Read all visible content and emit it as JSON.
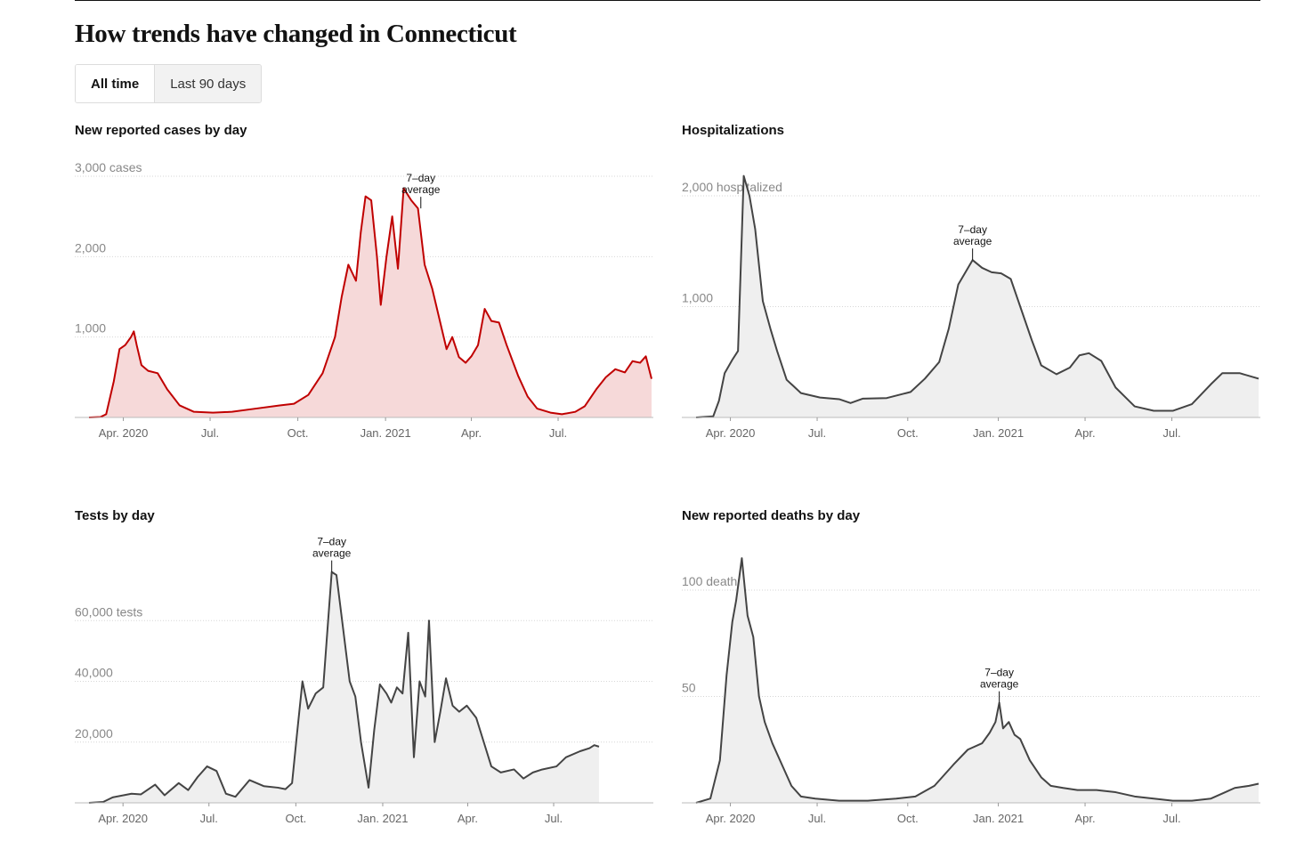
{
  "page": {
    "title": "How trends have changed in Connecticut"
  },
  "toggle": {
    "all_time": "All time",
    "last_90": "Last 90 days"
  },
  "colors": {
    "cases_line": "#c00000",
    "cases_fill": "#f6d9d9",
    "gray_line": "#444444",
    "gray_fill": "#efefef"
  },
  "chart_data": [
    {
      "id": "cases",
      "type": "area",
      "title": "New reported cases by day",
      "y_unit_label": "3,000 cases",
      "ylim": [
        0,
        3000
      ],
      "yticks": [
        {
          "v": 1000,
          "label": "1,000"
        },
        {
          "v": 2000,
          "label": "2,000"
        },
        {
          "v": 3000,
          "label": "3,000 cases"
        }
      ],
      "annotation": "7–day average",
      "annot_at": 348,
      "color": "cases",
      "xlim": [
        0,
        590
      ],
      "xticks": [
        {
          "v": 36,
          "label": "Apr. 2020"
        },
        {
          "v": 127,
          "label": "Jul."
        },
        {
          "v": 219,
          "label": "Oct."
        },
        {
          "v": 311,
          "label": "Jan. 2021"
        },
        {
          "v": 401,
          "label": "Apr."
        },
        {
          "v": 492,
          "label": "Jul."
        }
      ],
      "points": [
        [
          0,
          0
        ],
        [
          12,
          5
        ],
        [
          18,
          40
        ],
        [
          26,
          450
        ],
        [
          32,
          850
        ],
        [
          38,
          900
        ],
        [
          44,
          1000
        ],
        [
          47,
          1070
        ],
        [
          50,
          900
        ],
        [
          55,
          650
        ],
        [
          62,
          580
        ],
        [
          72,
          550
        ],
        [
          82,
          350
        ],
        [
          95,
          150
        ],
        [
          110,
          70
        ],
        [
          130,
          60
        ],
        [
          150,
          70
        ],
        [
          175,
          110
        ],
        [
          200,
          150
        ],
        [
          215,
          170
        ],
        [
          230,
          280
        ],
        [
          245,
          550
        ],
        [
          258,
          1000
        ],
        [
          265,
          1500
        ],
        [
          272,
          1900
        ],
        [
          280,
          1700
        ],
        [
          285,
          2300
        ],
        [
          290,
          2750
        ],
        [
          296,
          2700
        ],
        [
          302,
          2000
        ],
        [
          306,
          1400
        ],
        [
          312,
          2000
        ],
        [
          318,
          2500
        ],
        [
          324,
          1850
        ],
        [
          330,
          2850
        ],
        [
          338,
          2700
        ],
        [
          345,
          2600
        ],
        [
          352,
          1900
        ],
        [
          360,
          1600
        ],
        [
          368,
          1200
        ],
        [
          375,
          850
        ],
        [
          381,
          1000
        ],
        [
          388,
          750
        ],
        [
          395,
          680
        ],
        [
          401,
          760
        ],
        [
          408,
          900
        ],
        [
          415,
          1350
        ],
        [
          422,
          1200
        ],
        [
          430,
          1180
        ],
        [
          438,
          900
        ],
        [
          450,
          520
        ],
        [
          460,
          260
        ],
        [
          470,
          110
        ],
        [
          484,
          60
        ],
        [
          496,
          40
        ],
        [
          510,
          70
        ],
        [
          520,
          140
        ],
        [
          532,
          350
        ],
        [
          542,
          500
        ],
        [
          552,
          600
        ],
        [
          562,
          560
        ],
        [
          570,
          700
        ],
        [
          578,
          680
        ],
        [
          584,
          760
        ],
        [
          590,
          480
        ]
      ]
    },
    {
      "id": "hosp",
      "type": "area",
      "title": "Hospitalizations",
      "y_unit_label": "2,000 hospitalized",
      "ylim": [
        0,
        2000
      ],
      "yticks": [
        {
          "v": 1000,
          "label": "1,000"
        },
        {
          "v": 2000,
          "label": "2,000 hospitalized"
        }
      ],
      "annotation": "7–day average",
      "annot_at": 290,
      "color": "gray",
      "xlim": [
        0,
        590
      ],
      "xticks": [
        {
          "v": 36,
          "label": "Apr. 2020"
        },
        {
          "v": 127,
          "label": "Jul."
        },
        {
          "v": 222,
          "label": "Oct."
        },
        {
          "v": 317,
          "label": "Jan. 2021"
        },
        {
          "v": 408,
          "label": "Apr."
        },
        {
          "v": 499,
          "label": "Jul."
        }
      ],
      "points": [
        [
          0,
          0
        ],
        [
          18,
          10
        ],
        [
          24,
          150
        ],
        [
          30,
          400
        ],
        [
          38,
          520
        ],
        [
          44,
          600
        ],
        [
          50,
          2180
        ],
        [
          56,
          2000
        ],
        [
          62,
          1700
        ],
        [
          70,
          1050
        ],
        [
          78,
          800
        ],
        [
          85,
          600
        ],
        [
          95,
          340
        ],
        [
          110,
          220
        ],
        [
          130,
          180
        ],
        [
          150,
          165
        ],
        [
          162,
          130
        ],
        [
          175,
          170
        ],
        [
          200,
          175
        ],
        [
          225,
          230
        ],
        [
          240,
          350
        ],
        [
          255,
          500
        ],
        [
          265,
          800
        ],
        [
          275,
          1200
        ],
        [
          290,
          1420
        ],
        [
          300,
          1350
        ],
        [
          310,
          1310
        ],
        [
          320,
          1300
        ],
        [
          330,
          1250
        ],
        [
          340,
          1000
        ],
        [
          352,
          700
        ],
        [
          362,
          470
        ],
        [
          378,
          390
        ],
        [
          392,
          450
        ],
        [
          402,
          560
        ],
        [
          412,
          580
        ],
        [
          425,
          510
        ],
        [
          440,
          270
        ],
        [
          460,
          100
        ],
        [
          480,
          60
        ],
        [
          500,
          60
        ],
        [
          520,
          120
        ],
        [
          540,
          300
        ],
        [
          552,
          400
        ],
        [
          570,
          400
        ],
        [
          590,
          350
        ]
      ]
    },
    {
      "id": "tests",
      "type": "area",
      "title": "Tests by day",
      "y_unit_label": "60,000 tests",
      "ylim": [
        0,
        80000
      ],
      "yticks": [
        {
          "v": 20000,
          "label": "20,000"
        },
        {
          "v": 40000,
          "label": "40,000"
        },
        {
          "v": 60000,
          "label": "60,000 tests"
        }
      ],
      "annotation": "7–day average",
      "annot_at": 257,
      "color": "gray",
      "xlim": [
        0,
        590
      ],
      "xticks": [
        {
          "v": 36,
          "label": "Apr. 2020"
        },
        {
          "v": 127,
          "label": "Jul."
        },
        {
          "v": 219,
          "label": "Oct."
        },
        {
          "v": 311,
          "label": "Jan. 2021"
        },
        {
          "v": 401,
          "label": "Apr."
        },
        {
          "v": 492,
          "label": "Jul."
        }
      ],
      "points": [
        [
          0,
          0
        ],
        [
          15,
          300
        ],
        [
          25,
          1800
        ],
        [
          45,
          3000
        ],
        [
          55,
          2800
        ],
        [
          70,
          6000
        ],
        [
          80,
          2500
        ],
        [
          95,
          6500
        ],
        [
          105,
          4200
        ],
        [
          115,
          8500
        ],
        [
          125,
          12000
        ],
        [
          135,
          10500
        ],
        [
          145,
          3000
        ],
        [
          155,
          2000
        ],
        [
          170,
          7500
        ],
        [
          185,
          5500
        ],
        [
          200,
          5000
        ],
        [
          208,
          4500
        ],
        [
          215,
          6500
        ],
        [
          220,
          22000
        ],
        [
          226,
          40000
        ],
        [
          232,
          31000
        ],
        [
          240,
          36000
        ],
        [
          248,
          38000
        ],
        [
          252,
          55000
        ],
        [
          257,
          76000
        ],
        [
          262,
          75000
        ],
        [
          268,
          60000
        ],
        [
          276,
          40000
        ],
        [
          282,
          35000
        ],
        [
          288,
          20000
        ],
        [
          296,
          5000
        ],
        [
          302,
          24000
        ],
        [
          308,
          39000
        ],
        [
          315,
          36000
        ],
        [
          320,
          33000
        ],
        [
          326,
          38000
        ],
        [
          332,
          36000
        ],
        [
          338,
          56000
        ],
        [
          344,
          15000
        ],
        [
          350,
          40000
        ],
        [
          356,
          35000
        ],
        [
          360,
          60000
        ],
        [
          366,
          20000
        ],
        [
          372,
          30000
        ],
        [
          378,
          41000
        ],
        [
          385,
          32000
        ],
        [
          392,
          30000
        ],
        [
          400,
          32000
        ],
        [
          410,
          28000
        ],
        [
          418,
          20000
        ],
        [
          426,
          12000
        ],
        [
          436,
          10000
        ],
        [
          450,
          11000
        ],
        [
          460,
          8000
        ],
        [
          470,
          10000
        ],
        [
          480,
          11000
        ],
        [
          495,
          12000
        ],
        [
          505,
          15000
        ],
        [
          520,
          17000
        ],
        [
          530,
          18000
        ],
        [
          535,
          19000
        ],
        [
          540,
          18500
        ]
      ]
    },
    {
      "id": "deaths",
      "type": "area",
      "title": "New reported deaths by day",
      "y_unit_label": "100 deaths",
      "ylim": [
        0,
        100
      ],
      "yticks": [
        {
          "v": 50,
          "label": "50"
        },
        {
          "v": 100,
          "label": "100 deaths"
        }
      ],
      "annotation": "7–day average",
      "annot_at": 318,
      "color": "gray",
      "xlim": [
        0,
        590
      ],
      "xticks": [
        {
          "v": 36,
          "label": "Apr. 2020"
        },
        {
          "v": 127,
          "label": "Jul."
        },
        {
          "v": 222,
          "label": "Oct."
        },
        {
          "v": 317,
          "label": "Jan. 2021"
        },
        {
          "v": 408,
          "label": "Apr."
        },
        {
          "v": 499,
          "label": "Jul."
        }
      ],
      "points": [
        [
          0,
          0
        ],
        [
          15,
          2
        ],
        [
          25,
          20
        ],
        [
          32,
          60
        ],
        [
          38,
          85
        ],
        [
          42,
          95
        ],
        [
          48,
          115
        ],
        [
          54,
          88
        ],
        [
          60,
          78
        ],
        [
          66,
          50
        ],
        [
          72,
          38
        ],
        [
          80,
          28
        ],
        [
          90,
          18
        ],
        [
          100,
          8
        ],
        [
          110,
          3
        ],
        [
          125,
          2
        ],
        [
          150,
          1
        ],
        [
          180,
          1
        ],
        [
          210,
          2
        ],
        [
          230,
          3
        ],
        [
          250,
          8
        ],
        [
          270,
          18
        ],
        [
          285,
          25
        ],
        [
          300,
          28
        ],
        [
          308,
          33
        ],
        [
          314,
          38
        ],
        [
          318,
          47
        ],
        [
          322,
          35
        ],
        [
          328,
          38
        ],
        [
          334,
          32
        ],
        [
          340,
          30
        ],
        [
          350,
          20
        ],
        [
          362,
          12
        ],
        [
          372,
          8
        ],
        [
          385,
          7
        ],
        [
          400,
          6
        ],
        [
          420,
          6
        ],
        [
          440,
          5
        ],
        [
          460,
          3
        ],
        [
          480,
          2
        ],
        [
          500,
          1
        ],
        [
          520,
          1
        ],
        [
          540,
          2
        ],
        [
          555,
          5
        ],
        [
          565,
          7
        ],
        [
          580,
          8
        ],
        [
          590,
          9
        ]
      ]
    }
  ]
}
